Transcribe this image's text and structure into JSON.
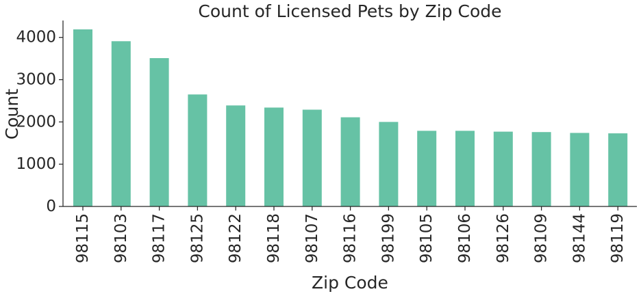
{
  "chart_data": {
    "type": "bar",
    "title": "Count of Licensed Pets by Zip Code",
    "xlabel": "Zip Code",
    "ylabel": "Count",
    "categories": [
      "98115",
      "98103",
      "98117",
      "98125",
      "98122",
      "98118",
      "98107",
      "98116",
      "98199",
      "98105",
      "98106",
      "98126",
      "98109",
      "98144",
      "98119"
    ],
    "values": [
      4190,
      3910,
      3510,
      2650,
      2390,
      2340,
      2290,
      2110,
      2000,
      1790,
      1790,
      1770,
      1760,
      1740,
      1730
    ],
    "yticks": [
      0,
      1000,
      2000,
      3000,
      4000
    ],
    "ylim": [
      0,
      4400
    ],
    "grid": false,
    "bar_color": "#66c2a5",
    "axis_color": "#262626"
  }
}
